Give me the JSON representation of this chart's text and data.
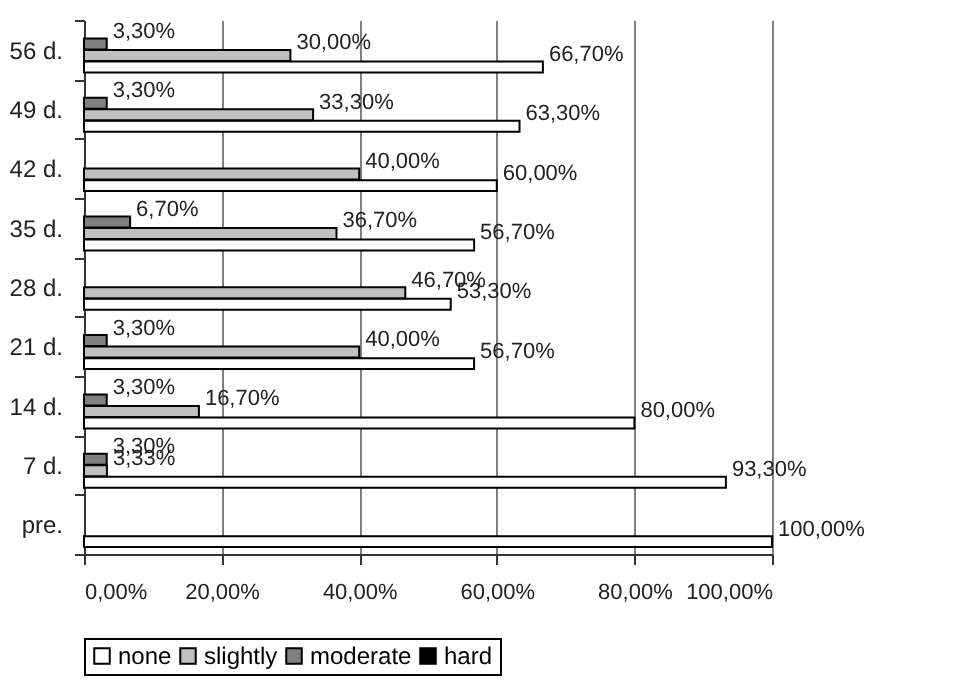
{
  "chart_data": {
    "type": "bar",
    "orientation": "horizontal",
    "categories": [
      "56 d.",
      "49 d.",
      "42 d.",
      "35 d.",
      "28 d.",
      "21 d.",
      "14 d.",
      "7 d.",
      "pre."
    ],
    "series": [
      {
        "name": "none",
        "color": "#ffffff",
        "values": [
          66.7,
          63.3,
          60,
          56.7,
          53.3,
          56.7,
          80,
          93.3,
          100
        ],
        "value_labels": [
          "66,70%",
          "63,30%",
          "60,00%",
          "56,70%",
          "53,30%",
          "56,70%",
          "80,00%",
          "93,30%",
          "100,00%"
        ]
      },
      {
        "name": "slightly",
        "color": "#c0c0c0",
        "values": [
          30,
          33.3,
          40,
          36.7,
          46.7,
          40,
          16.7,
          3.33,
          0
        ],
        "value_labels": [
          "30,00%",
          "33,30%",
          "40,00%",
          "36,70%",
          "46,70%",
          "40,00%",
          "16,70%",
          "3,33%",
          null
        ]
      },
      {
        "name": "moderate",
        "color": "#808080",
        "values": [
          3.3,
          3.3,
          0,
          6.7,
          0,
          3.3,
          3.3,
          3.3,
          0
        ],
        "value_labels": [
          "3,30%",
          "3,30%",
          null,
          "6,70%",
          null,
          "3,30%",
          "3,30%",
          "3,30%",
          null
        ]
      },
      {
        "name": "hard",
        "color": "#000000",
        "values": [
          0,
          0,
          0,
          0,
          0,
          0,
          0,
          0,
          0
        ],
        "value_labels": [
          null,
          null,
          null,
          null,
          null,
          null,
          null,
          null,
          null
        ]
      }
    ],
    "xlim": [
      0,
      100
    ],
    "xticks": [
      {
        "value": 0,
        "label": "0,00%"
      },
      {
        "value": 20,
        "label": "20,00%"
      },
      {
        "value": 40,
        "label": "40,00%"
      },
      {
        "value": 60,
        "label": "60,00%"
      },
      {
        "value": 80,
        "label": "80,00%"
      },
      {
        "value": 100,
        "label": "100,00%"
      }
    ],
    "grid": "x",
    "legend": "bottom"
  }
}
